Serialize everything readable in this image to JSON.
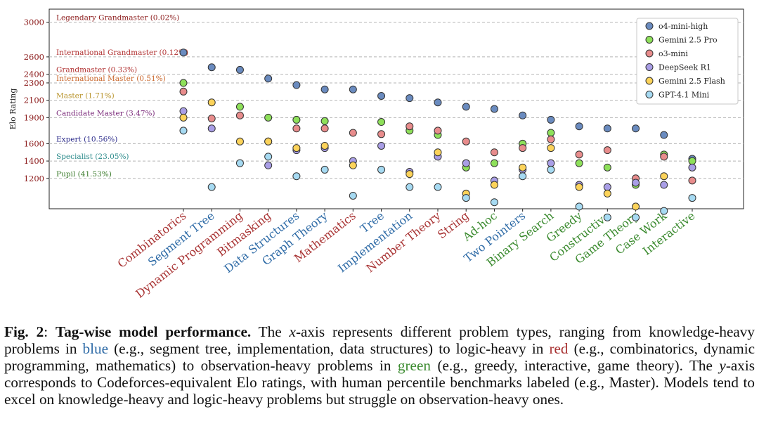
{
  "chart_data": {
    "type": "scatter",
    "ylabel": "Elo Rating",
    "yticks": [
      1200,
      1400,
      1600,
      1900,
      2100,
      2300,
      2400,
      2600,
      3000
    ],
    "ylim": [
      850,
      3150
    ],
    "colors": {
      "knowledge": "#2d6aa6",
      "logic": "#a83232",
      "observation": "#3a8a2e",
      "tick_label": "#8b1a1a"
    },
    "benchmarks": [
      {
        "label": "Legendary Grandmaster (0.02%)",
        "value": 3000,
        "color": "#8b1a1a"
      },
      {
        "label": "International Grandmaster (0.12%)",
        "value": 2600,
        "color": "#b03030"
      },
      {
        "label": "Grandmaster (0.33%)",
        "value": 2400,
        "color": "#b03030"
      },
      {
        "label": "International Master (0.51%)",
        "value": 2300,
        "color": "#c86428"
      },
      {
        "label": "Master (1.71%)",
        "value": 2100,
        "color": "#b8932a"
      },
      {
        "label": "Candidate Master (3.47%)",
        "value": 1900,
        "color": "#7a2a7a"
      },
      {
        "label": "Expert (10.56%)",
        "value": 1600,
        "color": "#2a2a8a"
      },
      {
        "label": "Specialist (23.05%)",
        "value": 1400,
        "color": "#2a8a8a"
      },
      {
        "label": "Pupil (41.53%)",
        "value": 1200,
        "color": "#3a7a2a"
      }
    ],
    "categories": [
      {
        "name": "Combinatorics",
        "group": "logic"
      },
      {
        "name": "Segment Tree",
        "group": "knowledge"
      },
      {
        "name": "Dynamic Programming",
        "group": "logic"
      },
      {
        "name": "Bitmasking",
        "group": "logic"
      },
      {
        "name": "Data Structures",
        "group": "knowledge"
      },
      {
        "name": "Graph Theory",
        "group": "knowledge"
      },
      {
        "name": "Mathematics",
        "group": "logic"
      },
      {
        "name": "Tree",
        "group": "knowledge"
      },
      {
        "name": "Implementation",
        "group": "knowledge"
      },
      {
        "name": "Number Theory",
        "group": "logic"
      },
      {
        "name": "String",
        "group": "logic"
      },
      {
        "name": "Ad-hoc",
        "group": "observation"
      },
      {
        "name": "Two Pointers",
        "group": "knowledge"
      },
      {
        "name": "Binary Search",
        "group": "observation"
      },
      {
        "name": "Greedy",
        "group": "observation"
      },
      {
        "name": "Constructive",
        "group": "observation"
      },
      {
        "name": "Game Theory",
        "group": "observation"
      },
      {
        "name": "Case Work",
        "group": "observation"
      },
      {
        "name": "Interactive",
        "group": "observation"
      }
    ],
    "series": [
      {
        "name": "o4-mini-high",
        "color": "#6a8bbf",
        "values": [
          2650,
          2480,
          2450,
          2350,
          2275,
          2225,
          2225,
          2150,
          2125,
          2075,
          2025,
          2000,
          1925,
          1875,
          1800,
          1775,
          1775,
          1700,
          1425
        ]
      },
      {
        "name": "Gemini 2.5 Pro",
        "color": "#8ee05a",
        "values": [
          2300,
          null,
          2025,
          1900,
          1875,
          1860,
          null,
          1850,
          1750,
          1700,
          1325,
          1375,
          1600,
          1725,
          1375,
          1325,
          1125,
          1475,
          1400
        ]
      },
      {
        "name": "o3-mini",
        "color": "#e88c8c",
        "values": [
          2200,
          1890,
          1925,
          1625,
          1775,
          1775,
          1725,
          1710,
          1800,
          1750,
          1625,
          1500,
          1550,
          1650,
          1475,
          1525,
          1200,
          1450,
          1175
        ]
      },
      {
        "name": "DeepSeek R1",
        "color": "#a99ee6",
        "values": [
          1975,
          1775,
          null,
          1350,
          1525,
          1550,
          1400,
          1575,
          1275,
          1450,
          1375,
          1175,
          1300,
          1375,
          1125,
          1100,
          1150,
          1125,
          1325
        ]
      },
      {
        "name": "Gemini 2.5 Flash",
        "color": "#fcd35a",
        "values": [
          1900,
          2075,
          1625,
          1625,
          1550,
          1575,
          1350,
          null,
          1250,
          1500,
          1025,
          1125,
          1325,
          1550,
          1100,
          1025,
          875,
          1225,
          null
        ]
      },
      {
        "name": "GPT-4.1 Mini",
        "color": "#a6daf2",
        "values": [
          1750,
          1100,
          1375,
          1450,
          1225,
          1300,
          1000,
          1300,
          1100,
          1100,
          975,
          925,
          1225,
          1300,
          875,
          750,
          750,
          825,
          975
        ]
      }
    ]
  },
  "caption": {
    "fig_label": "Fig. 2",
    "colon": ": ",
    "title": "Tag-wise model performance.",
    "p1": " The ",
    "x_var": "x",
    "p2": "-axis represents different problem types, ranging from knowledge-heavy problems in ",
    "blue_word": "blue",
    "p3": " (e.g., segment tree, implementation, data structures) to logic-heavy in ",
    "red_word": "red",
    "p4": " (e.g., combinatorics, dynamic programming, mathematics) to observation-heavy problems in ",
    "green_word": "green",
    "p5": " (e.g., greedy, interactive, game theory). The ",
    "y_var": "y",
    "p6": "-axis corresponds to Codeforces-equivalent Elo ratings, with human percentile benchmarks labeled (e.g., Master). Models tend to excel on knowledge-heavy and logic-heavy problems but struggle on observation-heavy ones."
  }
}
